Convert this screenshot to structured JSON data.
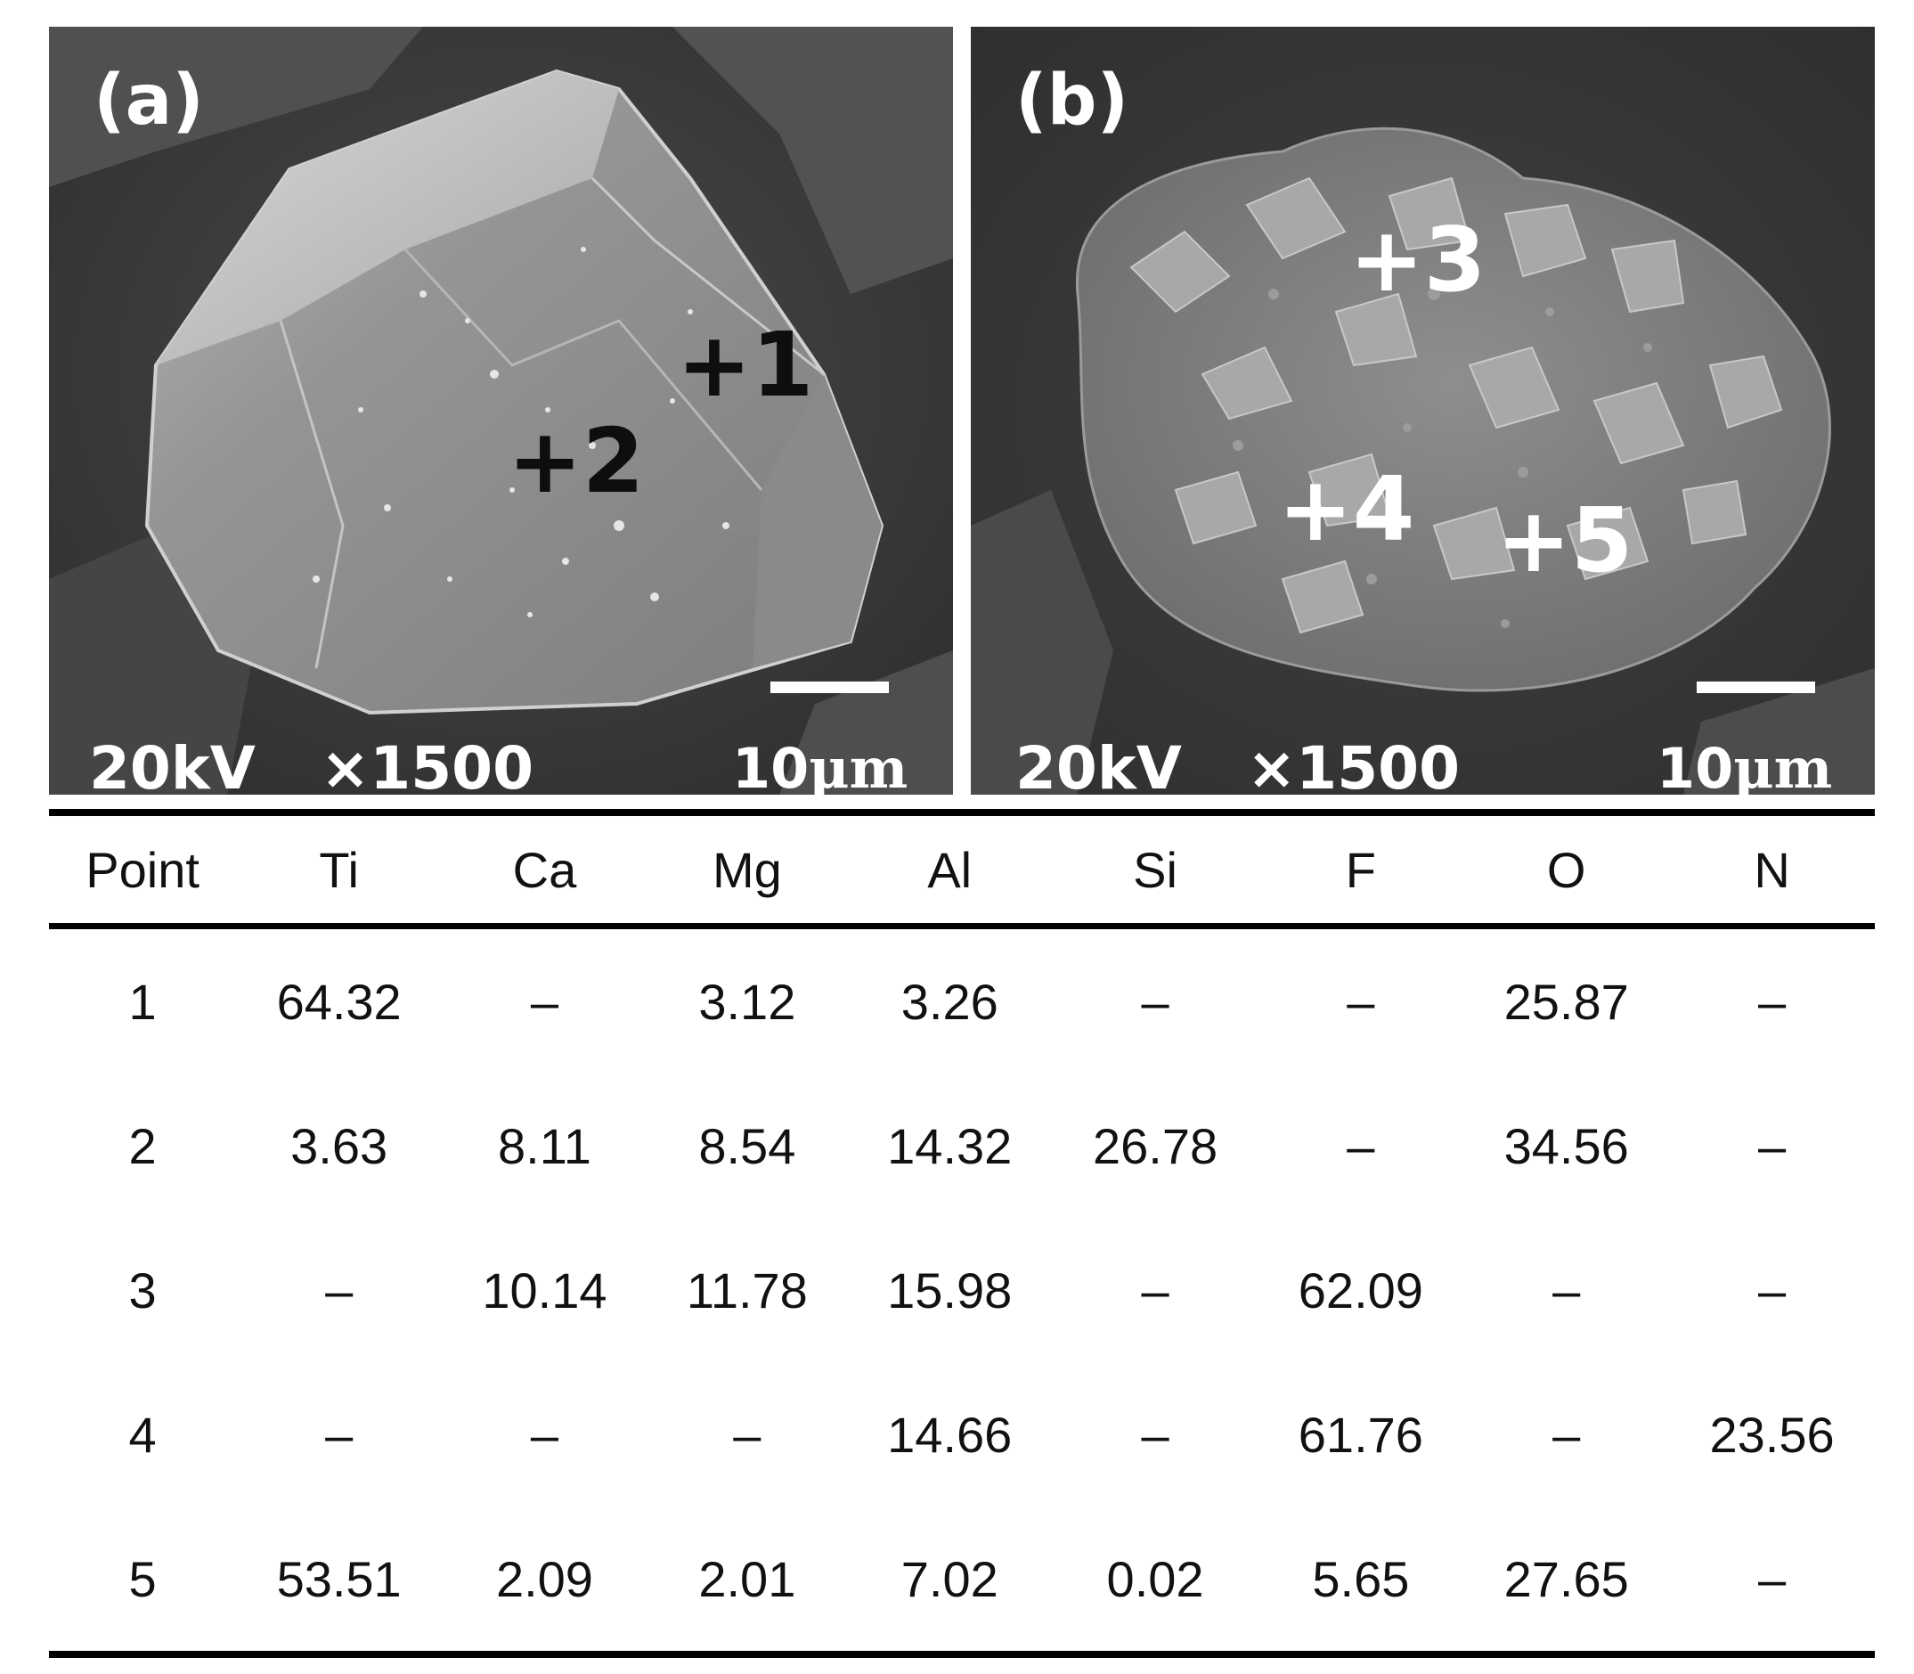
{
  "panels": [
    {
      "label": "(a)",
      "voltage": "20kV",
      "magnification": "×1500",
      "scale": "10",
      "scale_unit": "μm",
      "points": [
        "+1",
        "+2"
      ]
    },
    {
      "label": "(b)",
      "voltage": "20kV",
      "magnification": "×1500",
      "scale": "10",
      "scale_unit": "μm",
      "points": [
        "+3",
        "+4",
        "+5"
      ]
    }
  ],
  "table": {
    "headers": [
      "Point",
      "Ti",
      "Ca",
      "Mg",
      "Al",
      "Si",
      "F",
      "O",
      "N"
    ],
    "rows": [
      [
        "1",
        "64.32",
        "–",
        "3.12",
        "3.26",
        "–",
        "–",
        "25.87",
        "–"
      ],
      [
        "2",
        "3.63",
        "8.11",
        "8.54",
        "14.32",
        "26.78",
        "–",
        "34.56",
        "–"
      ],
      [
        "3",
        "–",
        "10.14",
        "11.78",
        "15.98",
        "–",
        "62.09",
        "–",
        "–"
      ],
      [
        "4",
        "–",
        "–",
        "–",
        "14.66",
        "–",
        "61.76",
        "–",
        "23.56"
      ],
      [
        "5",
        "53.51",
        "2.09",
        "2.01",
        "7.02",
        "0.02",
        "5.65",
        "27.65",
        "–"
      ]
    ]
  }
}
